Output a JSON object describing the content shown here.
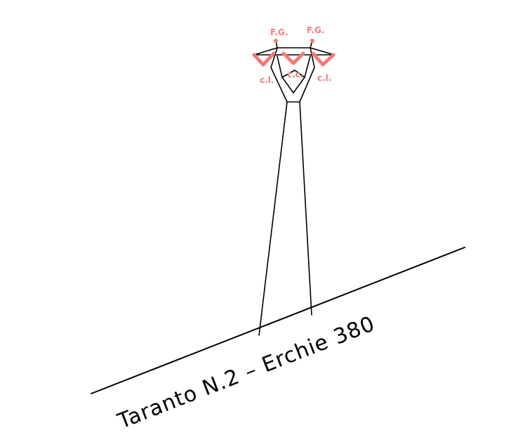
{
  "line_label": "Taranto  N.2  –  Erchie  380",
  "labels": {
    "fg_left": "F.G.",
    "fg_right": "F.G.",
    "ci_left": "c.l.",
    "cc_center": "c.c.",
    "ci_right": "c.l."
  },
  "colors": {
    "conductor_marks": "#f47a7a",
    "structure": "#000000"
  }
}
